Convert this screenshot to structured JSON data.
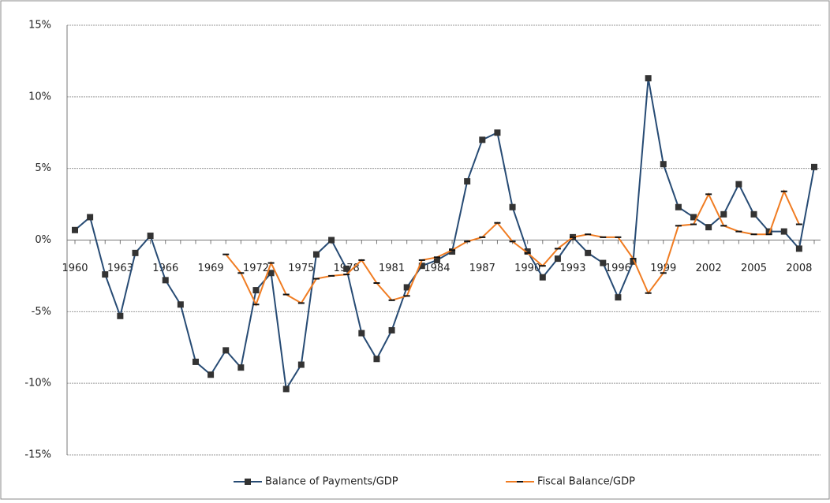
{
  "chart_data": {
    "type": "line",
    "categories": [
      "1960",
      null,
      null,
      "1963",
      null,
      null,
      "1966",
      null,
      null,
      "1969",
      null,
      null,
      "1972",
      null,
      null,
      "1975",
      null,
      null,
      "1978",
      null,
      null,
      "1981",
      null,
      null,
      "1984",
      null,
      null,
      "1987",
      null,
      null,
      "1990",
      null,
      null,
      "1993",
      null,
      null,
      "1996",
      null,
      null,
      "1999",
      null,
      null,
      "2002",
      null,
      null,
      "2005",
      null,
      null,
      "2008",
      null
    ],
    "series": [
      {
        "name": "Balance of Payments/GDP",
        "color": "#274b74",
        "marker": "square",
        "values": [
          0.7,
          1.6,
          -2.4,
          -5.3,
          -0.9,
          0.3,
          -2.8,
          -4.5,
          -8.5,
          -9.4,
          -7.7,
          -8.9,
          -3.5,
          -2.3,
          -10.4,
          -8.7,
          -1.0,
          0.0,
          -2.0,
          -6.5,
          -8.3,
          -6.3,
          -3.3,
          -1.8,
          -1.4,
          -0.8,
          4.1,
          7.0,
          7.5,
          2.3,
          -0.8,
          -2.6,
          -1.3,
          0.2,
          -0.9,
          -1.6,
          -4.0,
          -1.5,
          11.3,
          5.3,
          2.3,
          1.6,
          0.9,
          1.8,
          3.9,
          1.8,
          0.6,
          0.6,
          -0.6,
          5.1
        ]
      },
      {
        "name": "Fiscal Balance/GDP",
        "color": "#f07c22",
        "marker": "dash",
        "values": [
          null,
          null,
          null,
          null,
          null,
          null,
          null,
          null,
          null,
          null,
          -1.0,
          -2.3,
          -4.5,
          -1.6,
          -3.8,
          -4.4,
          -2.7,
          -2.5,
          -2.4,
          -1.4,
          -3.0,
          -4.2,
          -3.9,
          -1.4,
          -1.2,
          -0.7,
          -0.1,
          0.2,
          1.2,
          -0.1,
          -0.9,
          -1.8,
          -0.6,
          0.2,
          0.4,
          0.2,
          0.2,
          -1.3,
          -3.7,
          -2.3,
          1.0,
          1.1,
          3.2,
          1.0,
          0.6,
          0.4,
          0.4,
          3.4,
          1.1,
          null
        ]
      }
    ],
    "ylim": [
      -15,
      15
    ],
    "yticks": [
      {
        "value": -15,
        "label": "-15%"
      },
      {
        "value": -10,
        "label": "-10%"
      },
      {
        "value": -5,
        "label": "-5%"
      },
      {
        "value": 0,
        "label": "0%"
      },
      {
        "value": 5,
        "label": "5%"
      },
      {
        "value": 10,
        "label": "10%"
      },
      {
        "value": 15,
        "label": "15%"
      }
    ],
    "grid": true,
    "legend": "bottom"
  }
}
